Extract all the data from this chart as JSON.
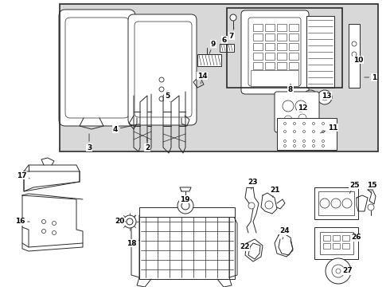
{
  "bg_color": "#ffffff",
  "gray_bg": "#d8d8d8",
  "line_color": "#2a2a2a",
  "label_color": "#000000",
  "fig_width": 4.9,
  "fig_height": 3.6,
  "dpi": 100
}
